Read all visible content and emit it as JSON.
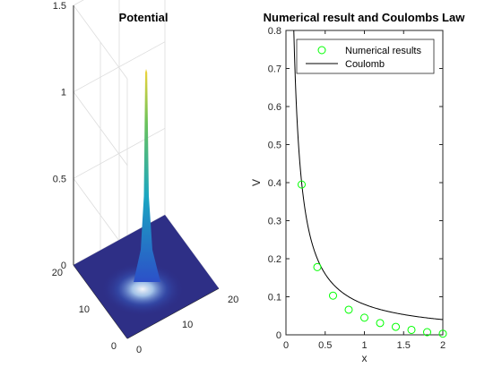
{
  "figure": {
    "background": "#ffffff"
  },
  "chart_data": [
    {
      "type": "surface",
      "title": "Potential",
      "xlabel": "",
      "ylabel": "",
      "zlabel": "",
      "xlim": [
        0,
        20
      ],
      "ylim": [
        0,
        20
      ],
      "zlim": [
        0,
        1.5
      ],
      "x_ticks": [
        "0",
        "10",
        "20"
      ],
      "y_ticks": [
        "0",
        "10",
        "20"
      ],
      "z_ticks": [
        "0",
        "0.5",
        "1",
        "1.5"
      ],
      "peak": {
        "x": 10,
        "y": 10,
        "z": 1.2
      },
      "grid": true,
      "colormap": "parula"
    },
    {
      "type": "scatter+line",
      "title": "Numerical result and Coulombs Law",
      "xlabel": "x",
      "ylabel": "V",
      "xlim": [
        0,
        2
      ],
      "ylim": [
        0,
        0.8
      ],
      "x_ticks": [
        "0",
        "0.5",
        "1",
        "1.5",
        "2"
      ],
      "y_ticks": [
        "0",
        "0.1",
        "0.2",
        "0.3",
        "0.4",
        "0.5",
        "0.6",
        "0.7",
        "0.8"
      ],
      "grid": false,
      "legend_position": "top-right",
      "series": [
        {
          "name": "Numerical results",
          "marker": "circle",
          "color": "#00ff00",
          "x": [
            0.2,
            0.4,
            0.6,
            0.8,
            1.0,
            1.2,
            1.4,
            1.6,
            1.8,
            2.0
          ],
          "y": [
            0.395,
            0.178,
            0.103,
            0.066,
            0.045,
            0.031,
            0.021,
            0.013,
            0.007,
            0.003
          ]
        },
        {
          "name": "Coulomb",
          "line": "solid",
          "color": "#000000",
          "function": "0.08/x",
          "x_range": [
            0.1,
            2.0
          ]
        }
      ]
    }
  ]
}
